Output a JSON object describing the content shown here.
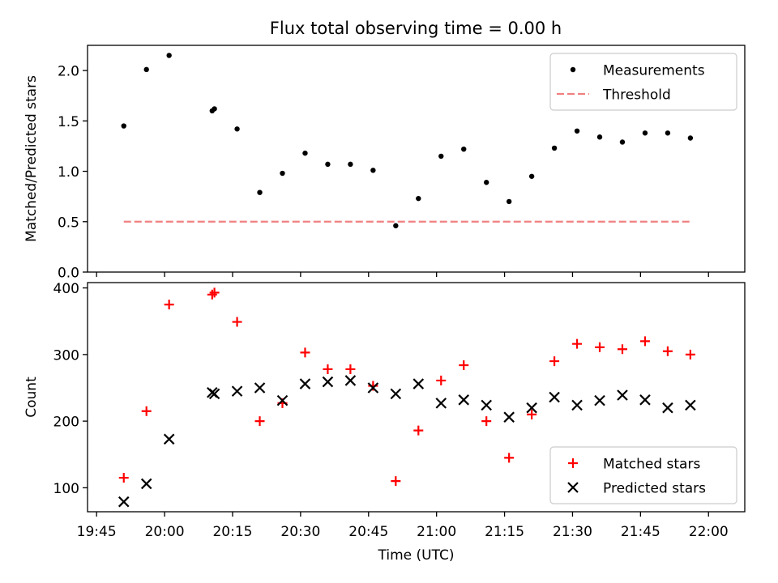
{
  "title": "Flux total observing time = 0.00 h",
  "chart_data": [
    {
      "type": "scatter",
      "ylabel": "Matched/Predicted stars",
      "xlim": [
        "19:43",
        "22:08"
      ],
      "ylim": [
        0,
        2.25
      ],
      "y_ticks": [
        0.0,
        0.5,
        1.0,
        1.5,
        2.0
      ],
      "y_tick_labels": [
        "0.0",
        "0.5",
        "1.0",
        "1.5",
        "2.0"
      ],
      "legend": {
        "position": "top-right",
        "entries": [
          {
            "label": "Measurements",
            "marker": "dot",
            "color": "#000000"
          },
          {
            "label": "Threshold",
            "marker": "dashed-line",
            "color": "#f08080"
          }
        ]
      },
      "series": [
        {
          "name": "Measurements",
          "color": "#000000",
          "points": [
            {
              "x": "19:51",
              "y": 1.45
            },
            {
              "x": "19:56",
              "y": 2.01
            },
            {
              "x": "20:01",
              "y": 2.15
            },
            {
              "x": "20:10.5",
              "y": 1.6
            },
            {
              "x": "20:11",
              "y": 1.62
            },
            {
              "x": "20:16",
              "y": 1.42
            },
            {
              "x": "20:21",
              "y": 0.79
            },
            {
              "x": "20:26",
              "y": 0.98
            },
            {
              "x": "20:31",
              "y": 1.18
            },
            {
              "x": "20:36",
              "y": 1.07
            },
            {
              "x": "20:41",
              "y": 1.07
            },
            {
              "x": "20:46",
              "y": 1.01
            },
            {
              "x": "20:51",
              "y": 0.46
            },
            {
              "x": "20:56",
              "y": 0.73
            },
            {
              "x": "21:01",
              "y": 1.15
            },
            {
              "x": "21:06",
              "y": 1.22
            },
            {
              "x": "21:11",
              "y": 0.89
            },
            {
              "x": "21:16",
              "y": 0.7
            },
            {
              "x": "21:21",
              "y": 0.95
            },
            {
              "x": "21:26",
              "y": 1.23
            },
            {
              "x": "21:31",
              "y": 1.4
            },
            {
              "x": "21:36",
              "y": 1.34
            },
            {
              "x": "21:41",
              "y": 1.29
            },
            {
              "x": "21:46",
              "y": 1.38
            },
            {
              "x": "21:51",
              "y": 1.38
            },
            {
              "x": "21:56",
              "y": 1.33
            }
          ]
        },
        {
          "name": "Threshold",
          "color": "#f08080",
          "points": [
            {
              "x": "19:51",
              "y": 0.5
            },
            {
              "x": "21:56",
              "y": 0.5
            }
          ]
        }
      ]
    },
    {
      "type": "scatter",
      "xlabel": "Time (UTC)",
      "ylabel": "Count",
      "xlim": [
        "19:43",
        "22:08"
      ],
      "ylim": [
        64,
        408
      ],
      "x_ticks": [
        "19:45",
        "20:00",
        "20:15",
        "20:30",
        "20:45",
        "21:00",
        "21:15",
        "21:30",
        "21:45",
        "22:00"
      ],
      "y_ticks": [
        100,
        200,
        300,
        400
      ],
      "y_tick_labels": [
        "100",
        "200",
        "300",
        "400"
      ],
      "legend": {
        "position": "bottom-right",
        "entries": [
          {
            "label": "Matched stars",
            "marker": "plus",
            "color": "#ff0000"
          },
          {
            "label": "Predicted stars",
            "marker": "x",
            "color": "#000000"
          }
        ]
      },
      "series": [
        {
          "name": "Matched stars",
          "marker": "plus",
          "color": "#ff0000",
          "points": [
            {
              "x": "19:51",
              "y": 115
            },
            {
              "x": "19:56",
              "y": 215
            },
            {
              "x": "20:01",
              "y": 375
            },
            {
              "x": "20:10.5",
              "y": 390
            },
            {
              "x": "20:11",
              "y": 393
            },
            {
              "x": "20:16",
              "y": 349
            },
            {
              "x": "20:21",
              "y": 200
            },
            {
              "x": "20:26",
              "y": 227
            },
            {
              "x": "20:31",
              "y": 303
            },
            {
              "x": "20:36",
              "y": 278
            },
            {
              "x": "20:41",
              "y": 278
            },
            {
              "x": "20:46",
              "y": 253
            },
            {
              "x": "20:51",
              "y": 110
            },
            {
              "x": "20:56",
              "y": 186
            },
            {
              "x": "21:01",
              "y": 261
            },
            {
              "x": "21:06",
              "y": 284
            },
            {
              "x": "21:11",
              "y": 200
            },
            {
              "x": "21:16",
              "y": 145
            },
            {
              "x": "21:21",
              "y": 210
            },
            {
              "x": "21:26",
              "y": 290
            },
            {
              "x": "21:31",
              "y": 316
            },
            {
              "x": "21:36",
              "y": 311
            },
            {
              "x": "21:41",
              "y": 308
            },
            {
              "x": "21:46",
              "y": 320
            },
            {
              "x": "21:51",
              "y": 305
            },
            {
              "x": "21:56",
              "y": 300
            }
          ]
        },
        {
          "name": "Predicted stars",
          "marker": "x",
          "color": "#000000",
          "points": [
            {
              "x": "19:51",
              "y": 79
            },
            {
              "x": "19:56",
              "y": 106
            },
            {
              "x": "20:01",
              "y": 173
            },
            {
              "x": "20:10.5",
              "y": 243
            },
            {
              "x": "20:11",
              "y": 241
            },
            {
              "x": "20:16",
              "y": 245
            },
            {
              "x": "20:21",
              "y": 250
            },
            {
              "x": "20:26",
              "y": 231
            },
            {
              "x": "20:31",
              "y": 256
            },
            {
              "x": "20:36",
              "y": 259
            },
            {
              "x": "20:41",
              "y": 261
            },
            {
              "x": "20:46",
              "y": 250
            },
            {
              "x": "20:51",
              "y": 241
            },
            {
              "x": "20:56",
              "y": 256
            },
            {
              "x": "21:01",
              "y": 227
            },
            {
              "x": "21:06",
              "y": 232
            },
            {
              "x": "21:11",
              "y": 224
            },
            {
              "x": "21:16",
              "y": 206
            },
            {
              "x": "21:21",
              "y": 220
            },
            {
              "x": "21:26",
              "y": 236
            },
            {
              "x": "21:31",
              "y": 224
            },
            {
              "x": "21:36",
              "y": 231
            },
            {
              "x": "21:41",
              "y": 239
            },
            {
              "x": "21:46",
              "y": 232
            },
            {
              "x": "21:51",
              "y": 220
            },
            {
              "x": "21:56",
              "y": 224
            }
          ]
        }
      ]
    }
  ]
}
